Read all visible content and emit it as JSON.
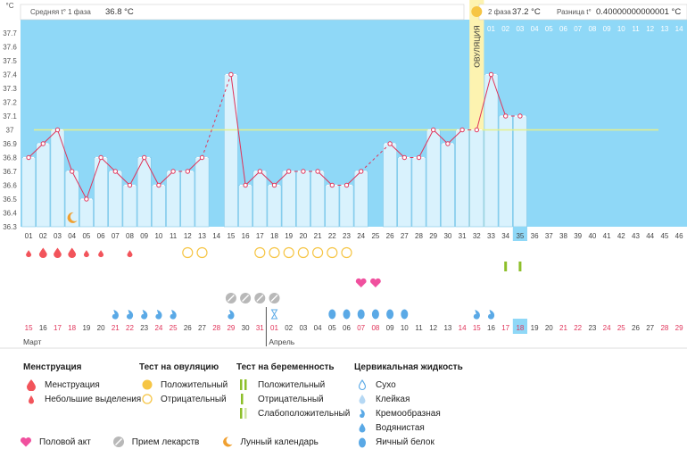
{
  "colors": {
    "chart_bg": "#8fd8f7",
    "bar_fill": "#d9f2fd",
    "bar_stroke": "#7fc7e8",
    "line": "#e0345a",
    "coverline": "#e6f08a",
    "ovulation_band": "#fdf3b0",
    "weekend_red": "#e0345a",
    "menstruation": "#f2545b",
    "drop_blue": "#5aa9e6",
    "pill_gray": "#b8b8b8",
    "heart_pink": "#f0509e",
    "sun": "#f6c544",
    "test_green": "#8dbf2a",
    "highlight": "#8fd8f7"
  },
  "header": {
    "phase1_label": "Средняя t° 1 фаза",
    "phase1_value": "36.8 °C",
    "phase2_label": "2 фаза",
    "phase2_value": "37.2 °C",
    "diff_label": "Разница t°",
    "diff_value": "0.40000000000001 °C",
    "unit_label": "°C",
    "ovulation_label": "ОВУЛЯЦИЯ"
  },
  "chart_data": {
    "type": "line",
    "ylabel": "°C",
    "ylim": [
      36.3,
      37.7
    ],
    "yticks": [
      "36.3",
      "36.4",
      "36.5",
      "36.6",
      "36.7",
      "36.8",
      "36.9",
      "37",
      "37.1",
      "37.2",
      "37.3",
      "37.4",
      "37.5",
      "37.6",
      "37.7"
    ],
    "cycle_days": [
      "01",
      "02",
      "03",
      "04",
      "05",
      "06",
      "07",
      "08",
      "09",
      "10",
      "11",
      "12",
      "13",
      "14",
      "15",
      "16",
      "17",
      "18",
      "19",
      "20",
      "21",
      "22",
      "23",
      "24",
      "25",
      "26",
      "27",
      "28",
      "29",
      "30",
      "31",
      "32",
      "33",
      "34",
      "35",
      "36",
      "37",
      "38",
      "39",
      "40",
      "41",
      "42",
      "43",
      "44",
      "45",
      "46"
    ],
    "temperatures": [
      36.8,
      36.9,
      37.0,
      36.7,
      36.5,
      36.8,
      36.7,
      36.6,
      36.8,
      36.6,
      36.7,
      36.7,
      36.8,
      null,
      37.4,
      36.6,
      36.7,
      36.6,
      36.7,
      36.7,
      36.7,
      36.6,
      36.6,
      36.7,
      null,
      36.9,
      36.8,
      36.8,
      37.0,
      36.9,
      37.0,
      37.0,
      37.4,
      37.1,
      37.1,
      null,
      null,
      null,
      null,
      null,
      null,
      null,
      null,
      null,
      null,
      null
    ],
    "coverline": 37.0,
    "ovulation_day": "32",
    "current_day": "35",
    "phase2_days": [
      "01",
      "02",
      "03",
      "04",
      "05",
      "06",
      "07",
      "08",
      "09",
      "10",
      "11",
      "12",
      "13",
      "14"
    ],
    "calendar_dates": [
      "15",
      "16",
      "17",
      "18",
      "19",
      "20",
      "21",
      "22",
      "23",
      "24",
      "25",
      "26",
      "27",
      "28",
      "29",
      "30",
      "31",
      "01",
      "02",
      "03",
      "04",
      "05",
      "06",
      "07",
      "08",
      "09",
      "10",
      "11",
      "12",
      "13",
      "14",
      "15",
      "16",
      "17",
      "18",
      "19",
      "20",
      "21",
      "22",
      "23",
      "24",
      "25",
      "26",
      "27",
      "28",
      "29"
    ],
    "weekend_dates": [
      "17",
      "18",
      "24",
      "25",
      "31",
      "01",
      "07",
      "08",
      "14",
      "15",
      "21",
      "22",
      "28",
      "29"
    ],
    "months": [
      {
        "label": "Март",
        "start_index": 0
      },
      {
        "label": "Апрель",
        "start_index": 17
      }
    ],
    "symptoms": {
      "menstruation_big": [
        2,
        3,
        4
      ],
      "menstruation_small": [
        1,
        5,
        6,
        8
      ],
      "ovulation_negative": [
        12,
        13,
        17,
        18,
        19,
        20,
        21,
        22,
        23
      ],
      "ovulation_positive": [
        32
      ],
      "pregnancy_positive": [
        34,
        35
      ],
      "sex": [
        24,
        25
      ],
      "pills": [
        15,
        16,
        17,
        18
      ],
      "lunar": [
        4
      ],
      "cervical_creamy": [
        7,
        8,
        9,
        10,
        11,
        15,
        32,
        33
      ],
      "cervical_dry": [
        18
      ],
      "cervical_eggwhite": [
        22,
        23,
        24,
        25,
        26,
        27
      ]
    }
  },
  "legend": {
    "menstruation": {
      "title": "Менструация",
      "items": [
        "Менструация",
        "Небольшие выделения"
      ]
    },
    "ovulation_test": {
      "title": "Тест на овуляцию",
      "items": [
        "Положительный",
        "Отрицательный"
      ]
    },
    "pregnancy_test": {
      "title": "Тест на беременность",
      "items": [
        "Положительный",
        "Отрицательный",
        "Слабоположительный"
      ]
    },
    "cervical": {
      "title": "Цервикальная жидкость",
      "items": [
        "Сухо",
        "Клейкая",
        "Кремообразная",
        "Водянистая",
        "Яичный белок"
      ]
    },
    "bottom": [
      "Половой акт",
      "Прием лекарств",
      "Лунный календарь"
    ]
  }
}
